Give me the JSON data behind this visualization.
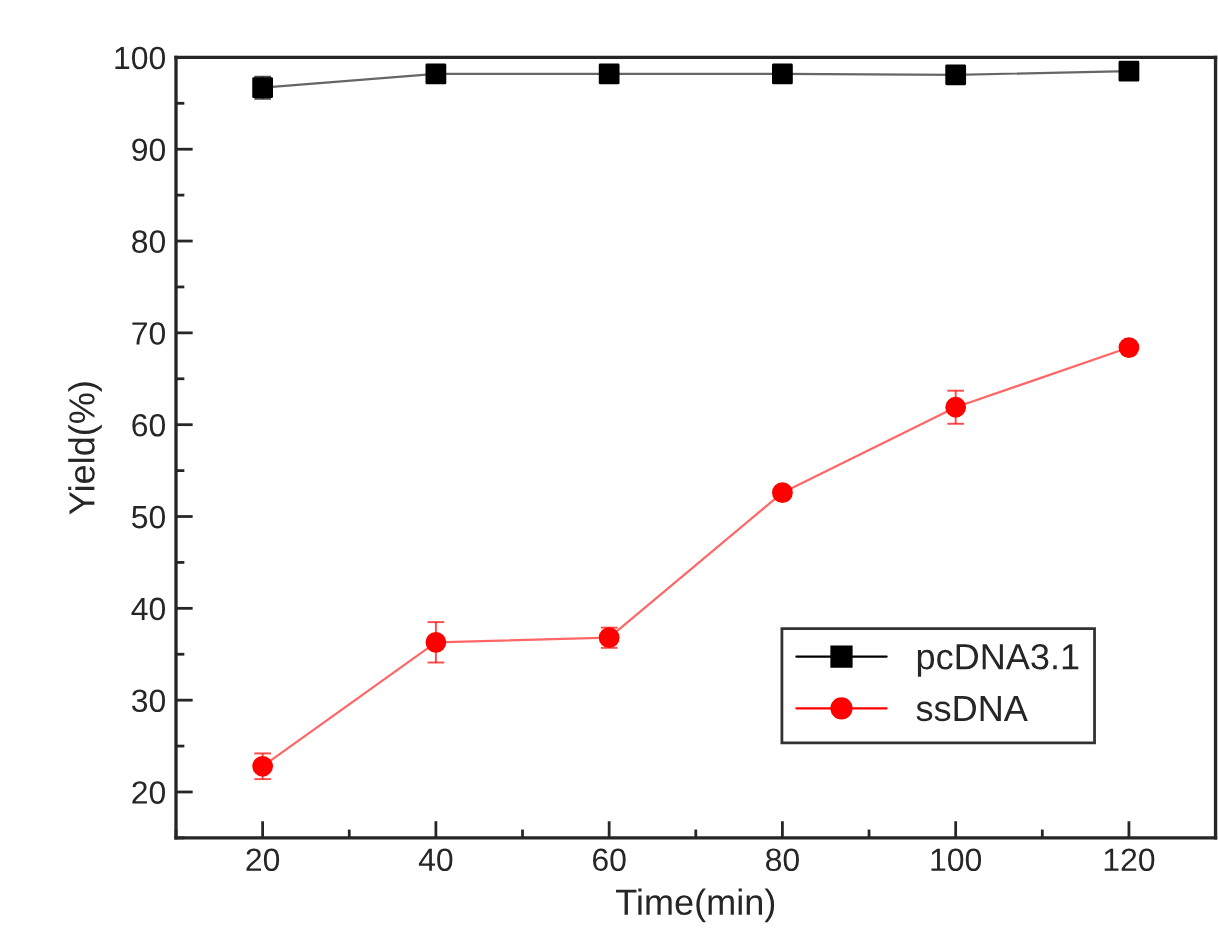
{
  "chart_data": {
    "type": "line",
    "xlabel": "Time(min)",
    "ylabel": "Yield(%)",
    "x": [
      20,
      40,
      60,
      80,
      100,
      120
    ],
    "series": [
      {
        "name": "pcDNA3.1",
        "color": "#000000",
        "marker": "square",
        "values": [
          96.7,
          98.2,
          98.2,
          98.2,
          98.1,
          98.5
        ],
        "errors": [
          1.2,
          null,
          null,
          null,
          null,
          null
        ]
      },
      {
        "name": "ssDNA",
        "color": "#ff0000",
        "marker": "circle",
        "values": [
          22.8,
          36.3,
          36.8,
          52.6,
          61.9,
          68.4
        ],
        "errors": [
          1.4,
          2.2,
          1.1,
          0.6,
          1.8,
          null
        ]
      }
    ],
    "xlim": [
      10,
      130
    ],
    "xticks": [
      20,
      40,
      60,
      80,
      100,
      120
    ],
    "ylim": [
      15,
      100
    ],
    "yticks": [
      20,
      30,
      40,
      50,
      60,
      70,
      80,
      90,
      100
    ],
    "legend": "lower right",
    "grid": false,
    "line_style": "solid"
  }
}
